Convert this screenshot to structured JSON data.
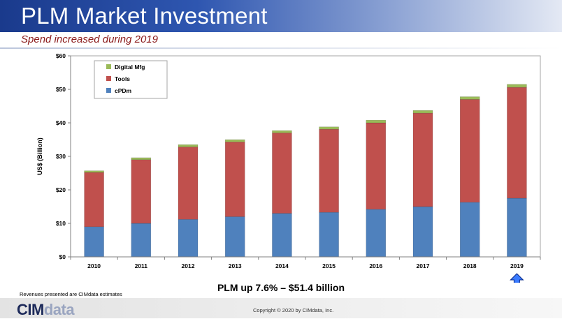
{
  "header": {
    "title": "PLM Market Investment",
    "subtitle": "Spend increased during 2019"
  },
  "chart_data": {
    "type": "bar",
    "stacked": true,
    "ylabel": "US$ (Billion)",
    "xlabel": "",
    "ylim": [
      0,
      60
    ],
    "yticks": [
      "$0",
      "$10",
      "$20",
      "$30",
      "$40",
      "$50",
      "$60"
    ],
    "categories": [
      "2010",
      "2011",
      "2012",
      "2013",
      "2014",
      "2015",
      "2016",
      "2017",
      "2018",
      "2019"
    ],
    "series": [
      {
        "name": "cPDm",
        "color": "#4f81bd",
        "values": [
          9.0,
          10.0,
          11.2,
          12.0,
          13.0,
          13.3,
          14.2,
          15.0,
          16.3,
          17.5
        ]
      },
      {
        "name": "Tools",
        "color": "#c0504d",
        "values": [
          16.2,
          19.0,
          21.6,
          22.3,
          24.0,
          24.8,
          25.8,
          27.9,
          30.7,
          33.1
        ]
      },
      {
        "name": "Digital Mfg",
        "color": "#9bbb59",
        "values": [
          0.5,
          0.6,
          0.7,
          0.7,
          0.7,
          0.7,
          0.8,
          0.8,
          0.8,
          0.9
        ]
      }
    ],
    "legend": "top-left",
    "grid": false,
    "highlight_category": "2019",
    "highlight_icon": "up-arrow-icon"
  },
  "summary": "PLM up 7.6% – $51.4 billion",
  "note": "Revenues presented are CIMdata estimates",
  "footer": {
    "logo_main": "CIM",
    "logo_dim": "data",
    "copyright": "Copyright © 2020 by CIMdata, Inc."
  }
}
